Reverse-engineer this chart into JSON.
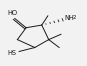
{
  "bond_color": "#1a1a1a",
  "bg_color": "#f2f2f2",
  "lw": 0.7,
  "fs": 4.8
}
